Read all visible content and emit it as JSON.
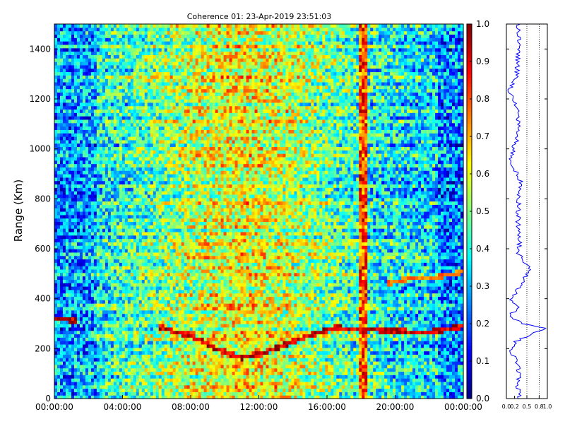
{
  "chart_data": [
    {
      "type": "heatmap",
      "title": "Coherence 01: 23-Apr-2019 23:51:03",
      "xlabel": "",
      "ylabel": "Range (Km)",
      "x_ticks": [
        "00:00:00",
        "04:00:00",
        "08:00:00",
        "12:00:00",
        "16:00:00",
        "20:00:00",
        "00:00:00"
      ],
      "x_range_hours": [
        0,
        24
      ],
      "y_ticks": [
        0,
        200,
        400,
        600,
        800,
        1000,
        1200,
        1400
      ],
      "ylim": [
        0,
        1500
      ],
      "grid": false,
      "colorscale": "jet",
      "colorbar": {
        "ticks": [
          "0.0",
          "0.1",
          "0.2",
          "0.3",
          "0.4",
          "0.5",
          "0.6",
          "0.7",
          "0.8",
          "0.9",
          "1.0"
        ],
        "range": [
          0,
          1
        ]
      },
      "features": {
        "echo_trace_km": [
          {
            "hour": 0.0,
            "km": 322
          },
          {
            "hour": 0.7,
            "km": 318
          },
          {
            "hour": 1.3,
            "km": 312
          },
          {
            "hour": 6.3,
            "km": 285
          },
          {
            "hour": 7.0,
            "km": 270
          },
          {
            "hour": 8.0,
            "km": 255
          },
          {
            "hour": 9.5,
            "km": 200
          },
          {
            "hour": 11.0,
            "km": 165
          },
          {
            "hour": 12.5,
            "km": 190
          },
          {
            "hour": 14.0,
            "km": 230
          },
          {
            "hour": 15.5,
            "km": 265
          },
          {
            "hour": 16.5,
            "km": 285
          },
          {
            "hour": 18.0,
            "km": 278
          },
          {
            "hour": 19.5,
            "km": 275
          },
          {
            "hour": 21.0,
            "km": 268
          },
          {
            "hour": 22.5,
            "km": 270
          },
          {
            "hour": 24.0,
            "km": 292
          }
        ],
        "upper_trace_km": [
          {
            "hour": 19.5,
            "km": 460
          },
          {
            "hour": 21.0,
            "km": 485
          },
          {
            "hour": 22.5,
            "km": 488
          },
          {
            "hour": 24.0,
            "km": 510
          }
        ],
        "high_coherence_column_hour": 18.2
      }
    },
    {
      "type": "line",
      "title": "",
      "xlabel": "",
      "ylabel": "",
      "xlim": [
        0,
        1
      ],
      "x_ticks": [
        "0.0",
        "0.2",
        "0.5",
        "0.8",
        "1.0"
      ],
      "ylim": [
        0,
        1500
      ],
      "reference_lines_x": [
        0.5,
        0.8
      ],
      "series": [
        {
          "color": "#0000ff",
          "profile": [
            {
              "km": 0,
              "value": 0.3
            },
            {
              "km": 50,
              "value": 0.28
            },
            {
              "km": 100,
              "value": 0.3
            },
            {
              "km": 150,
              "value": 0.27
            },
            {
              "km": 190,
              "value": 0.05
            },
            {
              "km": 230,
              "value": 0.25
            },
            {
              "km": 283,
              "value": 0.95
            },
            {
              "km": 300,
              "value": 0.4
            },
            {
              "km": 330,
              "value": 0.08
            },
            {
              "km": 370,
              "value": 0.3
            },
            {
              "km": 400,
              "value": 0.1
            },
            {
              "km": 450,
              "value": 0.35
            },
            {
              "km": 520,
              "value": 0.55
            },
            {
              "km": 580,
              "value": 0.3
            },
            {
              "km": 650,
              "value": 0.32
            },
            {
              "km": 720,
              "value": 0.28
            },
            {
              "km": 800,
              "value": 0.3
            },
            {
              "km": 870,
              "value": 0.34
            },
            {
              "km": 960,
              "value": 0.1
            },
            {
              "km": 1050,
              "value": 0.28
            },
            {
              "km": 1150,
              "value": 0.3
            },
            {
              "km": 1230,
              "value": 0.05
            },
            {
              "km": 1300,
              "value": 0.26
            },
            {
              "km": 1400,
              "value": 0.3
            },
            {
              "km": 1500,
              "value": 0.3
            }
          ]
        }
      ]
    }
  ]
}
